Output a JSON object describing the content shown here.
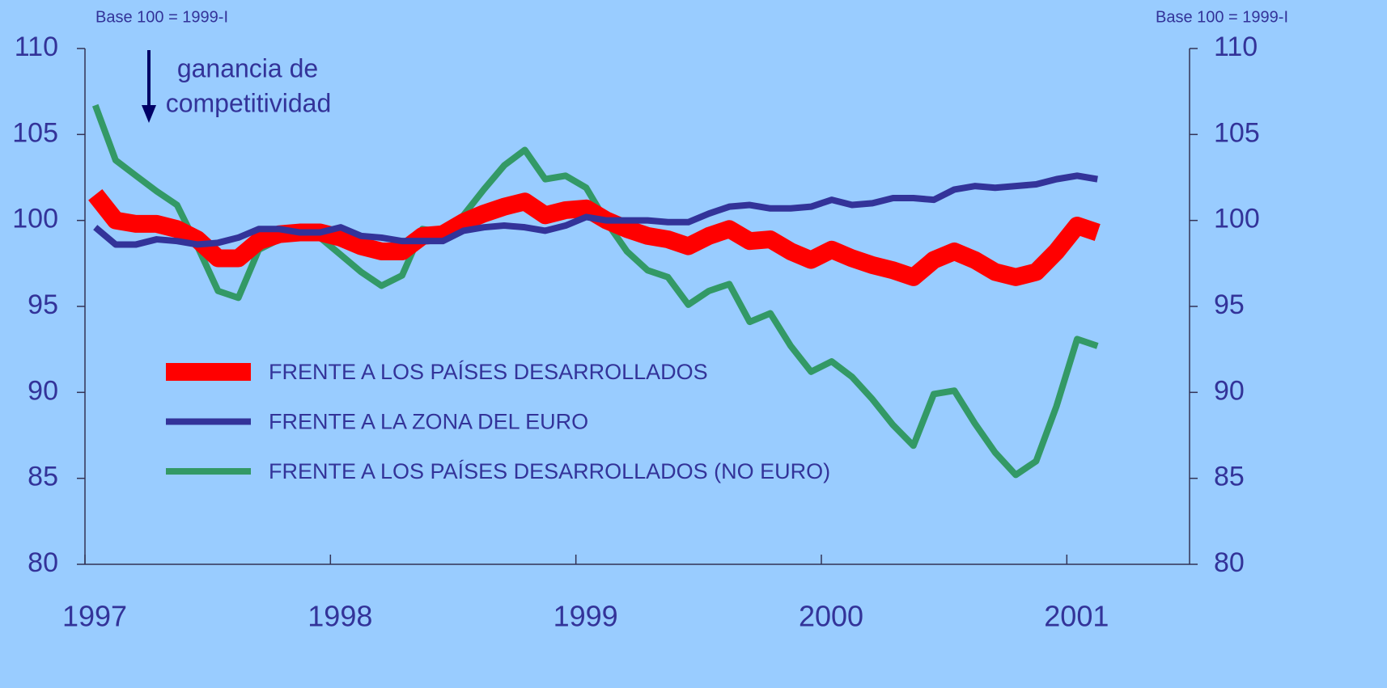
{
  "chart_data": {
    "type": "line",
    "annotations": [
      "Base 100 = 1999-I",
      "Base 100 = 1999-I",
      "ganancia de",
      "competitividad"
    ],
    "x": [
      1997.042,
      1997.125,
      1997.208,
      1997.292,
      1997.375,
      1997.458,
      1997.542,
      1997.625,
      1997.708,
      1997.792,
      1997.875,
      1997.958,
      1998.042,
      1998.125,
      1998.208,
      1998.292,
      1998.375,
      1998.458,
      1998.542,
      1998.625,
      1998.708,
      1998.792,
      1998.875,
      1998.958,
      1999.042,
      1999.125,
      1999.208,
      1999.292,
      1999.375,
      1999.458,
      1999.542,
      1999.625,
      1999.708,
      1999.792,
      1999.875,
      1999.958,
      2000.042,
      2000.125,
      2000.208,
      2000.292,
      2000.375,
      2000.458,
      2000.542,
      2000.625,
      2000.708,
      2000.792,
      2000.875,
      2000.958,
      2001.042,
      2001.125
    ],
    "series": [
      {
        "name": "FRENTE A LOS PAÍSES DESARROLLADOS",
        "color": "#ff0000",
        "values": [
          101.5,
          100.0,
          99.8,
          99.8,
          99.5,
          98.9,
          97.8,
          97.8,
          98.8,
          99.2,
          99.3,
          99.3,
          99.0,
          98.5,
          98.2,
          98.2,
          99.1,
          99.2,
          99.9,
          100.4,
          100.8,
          101.1,
          100.3,
          100.6,
          100.7,
          100.0,
          99.5,
          99.1,
          98.9,
          98.5,
          99.1,
          99.5,
          98.8,
          98.9,
          98.2,
          97.7,
          98.3,
          97.8,
          97.4,
          97.1,
          96.7,
          97.7,
          98.2,
          97.7,
          97.0,
          96.7,
          97.0,
          98.2,
          99.7,
          99.3
        ]
      },
      {
        "name": "FRENTE A LA ZONA DEL EURO",
        "color": "#333399",
        "values": [
          99.6,
          98.6,
          98.6,
          98.9,
          98.8,
          98.6,
          98.7,
          99.0,
          99.5,
          99.5,
          99.3,
          99.3,
          99.6,
          99.1,
          99.0,
          98.8,
          98.8,
          98.8,
          99.4,
          99.6,
          99.7,
          99.6,
          99.4,
          99.7,
          100.2,
          100.0,
          100.0,
          100.0,
          99.9,
          99.9,
          100.4,
          100.8,
          100.9,
          100.7,
          100.7,
          100.8,
          101.2,
          100.9,
          101.0,
          101.3,
          101.3,
          101.2,
          101.8,
          102.0,
          101.9,
          102.0,
          102.1,
          102.4,
          102.6,
          102.4
        ]
      },
      {
        "name": "FRENTE A LOS PAÍSES DESARROLLADOS (NO EURO)",
        "color": "#339966",
        "values": [
          106.7,
          103.5,
          102.6,
          101.7,
          100.9,
          98.5,
          95.9,
          95.5,
          98.3,
          98.9,
          99.4,
          99.0,
          98.0,
          97.0,
          96.2,
          96.8,
          99.5,
          99.3,
          100.3,
          101.8,
          103.2,
          104.1,
          102.4,
          102.6,
          101.9,
          99.9,
          98.2,
          97.1,
          96.7,
          95.1,
          95.9,
          96.3,
          94.1,
          94.6,
          92.7,
          91.2,
          91.8,
          90.9,
          89.6,
          88.1,
          86.9,
          89.9,
          90.1,
          88.2,
          86.5,
          85.2,
          86.0,
          89.2,
          93.1,
          92.7
        ]
      }
    ],
    "xlim": [
      1997,
      2001.5
    ],
    "xticks": [
      1997,
      1998,
      1999,
      2000,
      2001
    ],
    "ylim": [
      80,
      110
    ],
    "yticks": [
      80,
      85,
      90,
      95,
      100,
      105,
      110
    ],
    "y2lim": [
      80,
      110
    ],
    "y2ticks": [
      80,
      85,
      90,
      95,
      100,
      105,
      110
    ]
  }
}
